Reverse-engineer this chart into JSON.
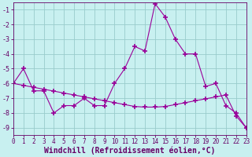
{
  "line1_x": [
    0,
    1,
    2,
    3,
    4,
    5,
    6,
    7,
    8,
    9,
    10,
    11,
    12,
    13,
    14,
    15,
    16,
    17,
    18,
    19,
    20,
    21,
    22,
    23
  ],
  "line1_y": [
    -6.0,
    -5.0,
    -6.5,
    -6.5,
    -8.0,
    -7.5,
    -7.5,
    -7.0,
    -7.5,
    -7.5,
    -6.0,
    -5.0,
    -3.5,
    -3.8,
    -0.6,
    -1.5,
    -3.0,
    -4.0,
    -4.0,
    -6.2,
    -6.0,
    -7.5,
    -8.0,
    -9.0
  ],
  "line2_x": [
    0,
    1,
    2,
    3,
    4,
    5,
    6,
    7,
    8,
    9,
    10,
    11,
    12,
    13,
    14,
    15,
    16,
    17,
    18,
    19,
    20,
    21,
    22,
    23
  ],
  "line2_y": [
    -6.0,
    -6.13,
    -6.26,
    -6.39,
    -6.52,
    -6.65,
    -6.78,
    -6.91,
    -7.04,
    -7.17,
    -7.3,
    -7.43,
    -7.56,
    -7.6,
    -7.6,
    -7.56,
    -7.43,
    -7.3,
    -7.17,
    -7.04,
    -6.91,
    -6.78,
    -8.2,
    -9.0
  ],
  "line_color": "#990099",
  "bg_color": "#c8f0f0",
  "grid_color": "#99cccc",
  "xlabel": "Windchill (Refroidissement éolien,°C)",
  "xlim": [
    0,
    23
  ],
  "ylim": [
    -9.5,
    -0.5
  ],
  "yticks": [
    -9,
    -8,
    -7,
    -6,
    -5,
    -4,
    -3,
    -2,
    -1
  ],
  "xticks": [
    0,
    1,
    2,
    3,
    4,
    5,
    6,
    7,
    8,
    9,
    10,
    11,
    12,
    13,
    14,
    15,
    16,
    17,
    18,
    19,
    20,
    21,
    22,
    23
  ],
  "tick_color": "#660066",
  "tick_fontsize": 5.5,
  "xlabel_fontsize": 7.0,
  "marker": "+",
  "markersize": 4,
  "linewidth": 0.8
}
